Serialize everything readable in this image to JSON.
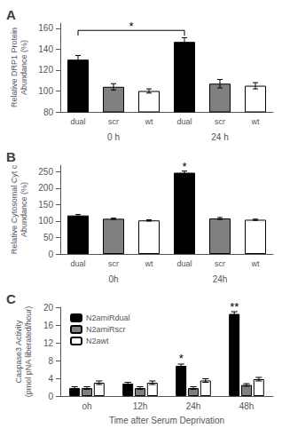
{
  "chart_data": [
    {
      "type": "bar",
      "title": "A",
      "ylabel": "Relative DRP1 Protein\nAbundance (%)",
      "categories": [
        "dual",
        "scr",
        "wt",
        "dual",
        "scr",
        "wt"
      ],
      "group_labels": [
        "0 h",
        "24 h"
      ],
      "values": [
        130,
        104,
        100,
        147,
        107,
        105
      ],
      "errors": [
        4,
        3,
        2,
        4,
        4,
        3
      ],
      "colors": [
        "#000000",
        "#808080",
        "#ffffff",
        "#000000",
        "#808080",
        "#ffffff"
      ],
      "ylim": [
        80,
        165
      ],
      "yticks": [
        80,
        100,
        120,
        140,
        160
      ],
      "grid": false,
      "annotations": [
        {
          "type": "bracket",
          "text": "*",
          "x1": 0,
          "x2": 3,
          "y": 158
        }
      ]
    },
    {
      "type": "bar",
      "title": "B",
      "ylabel": "Relative Cytosomal Cyt c\nAbundance (%)",
      "categories": [
        "dual",
        "scr",
        "wt",
        "dual",
        "scr",
        "wt"
      ],
      "group_labels": [
        "0h",
        "24h"
      ],
      "values": [
        117,
        107,
        102,
        247,
        108,
        104
      ],
      "errors": [
        3,
        2,
        2,
        5,
        3,
        2
      ],
      "colors": [
        "#000000",
        "#808080",
        "#ffffff",
        "#000000",
        "#808080",
        "#ffffff"
      ],
      "ylim": [
        0,
        270
      ],
      "yticks": [
        0,
        50,
        100,
        150,
        200,
        250
      ],
      "grid": false,
      "annotations": [
        {
          "text": "*",
          "x": 3,
          "y": 255
        }
      ]
    },
    {
      "type": "bar",
      "title": "C",
      "ylabel": "Caspase3 Activity\n(pmol pNA liberated/hour)",
      "xlabel": "Time after Serum Deprivation",
      "categories": [
        "oh",
        "12h",
        "24h",
        "48h"
      ],
      "series": [
        {
          "name": "N2amiRdual",
          "color": "#000000",
          "values": [
            1.8,
            2.8,
            6.8,
            18.5
          ],
          "errors": [
            0.3,
            0.3,
            0.4,
            0.5
          ]
        },
        {
          "name": "N2amiRscr",
          "color": "#808080",
          "values": [
            1.8,
            1.8,
            1.8,
            2.5
          ],
          "errors": [
            0.3,
            0.3,
            0.3,
            0.3
          ]
        },
        {
          "name": "N2awt",
          "color": "#ffffff",
          "values": [
            3.0,
            3.0,
            3.5,
            3.8
          ],
          "errors": [
            0.4,
            0.4,
            0.4,
            0.4
          ]
        }
      ],
      "ylim": [
        0,
        20
      ],
      "yticks": [
        0,
        4,
        8,
        12,
        16,
        20
      ],
      "grid": false,
      "legend": "upper left",
      "annotations": [
        {
          "text": "*",
          "x": 2,
          "series": "N2amiRdual",
          "y": 7.6
        },
        {
          "text": "**",
          "x": 3,
          "series": "N2amiRdual",
          "y": 19.3
        }
      ]
    }
  ]
}
